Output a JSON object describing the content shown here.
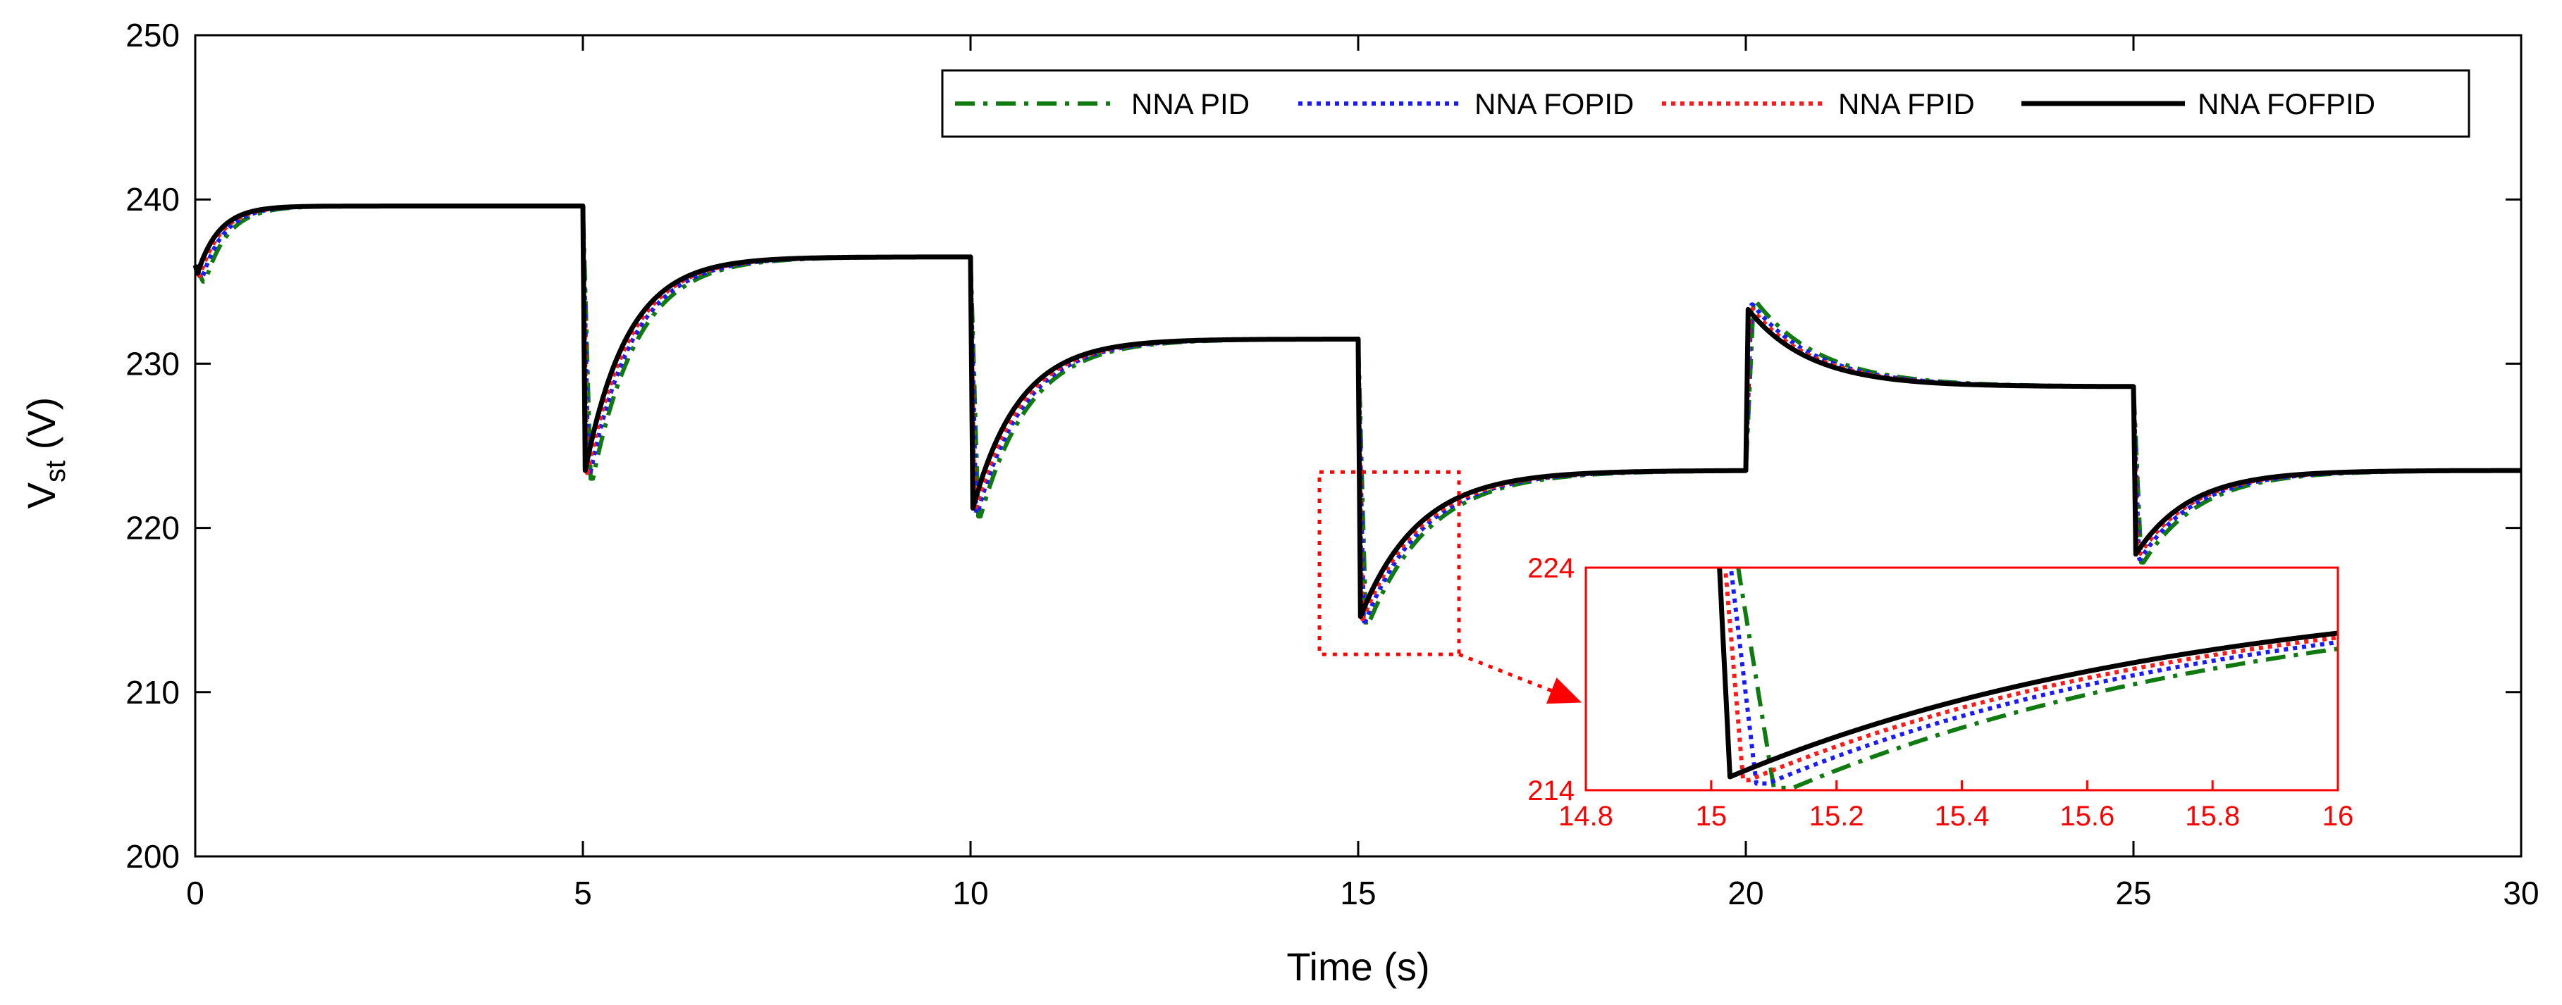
{
  "chart_data": {
    "type": "line",
    "title": "",
    "xlabel": "Time (s)",
    "ylabel_main": "V",
    "ylabel_sub": "st",
    "ylabel_unit": " (V)",
    "xlim": [
      0,
      30
    ],
    "ylim": [
      200,
      250
    ],
    "x_ticks": [
      "0",
      "5",
      "10",
      "15",
      "20",
      "25",
      "30"
    ],
    "x_tick_values": [
      0,
      5,
      10,
      15,
      20,
      25,
      30
    ],
    "y_ticks": [
      "200",
      "210",
      "220",
      "230",
      "240",
      "250"
    ],
    "y_tick_values": [
      200,
      210,
      220,
      230,
      240,
      250
    ],
    "grid": false,
    "legend_position": "top-right",
    "series": [
      {
        "name": "NNA PID",
        "color": "#0f7a0f",
        "dash": "dashdot",
        "dip_extra": 1.0
      },
      {
        "name": "NNA FOPID",
        "color": "#1a1aff",
        "dash": "dotted",
        "dip_extra": 0.6
      },
      {
        "name": "NNA FPID",
        "color": "#ff1a1a",
        "dash": "dotted",
        "dip_extra": 0.3
      },
      {
        "name": "NNA FOFPID",
        "color": "#000000",
        "dash": "solid",
        "dip_extra": 0.0
      }
    ],
    "segments": [
      {
        "t_start": 0,
        "t_end": 5,
        "start": 236.0,
        "peak": 235.5,
        "steady": 239.6
      },
      {
        "t_start": 5,
        "t_end": 10,
        "start": 239.6,
        "peak": 223.5,
        "steady": 236.5
      },
      {
        "t_start": 10,
        "t_end": 15,
        "start": 236.5,
        "peak": 221.2,
        "steady": 231.5
      },
      {
        "t_start": 15,
        "t_end": 20,
        "start": 231.5,
        "peak": 214.6,
        "steady": 223.5
      },
      {
        "t_start": 20,
        "t_end": 25,
        "start": 223.5,
        "peak": 233.3,
        "steady": 228.6
      },
      {
        "t_start": 25,
        "t_end": 30,
        "start": 228.6,
        "peak": 218.4,
        "steady": 223.5
      }
    ],
    "zoom_box": {
      "xlim": [
        14.5,
        16.3
      ],
      "ylim": [
        212.3,
        223.4
      ],
      "color": "#ff0000"
    },
    "inset": {
      "xlim": [
        14.8,
        16
      ],
      "ylim": [
        214,
        224
      ],
      "x_ticks": [
        "14.8",
        "15",
        "15.2",
        "15.4",
        "15.6",
        "15.8",
        "16"
      ],
      "x_tick_values": [
        14.8,
        15,
        15.2,
        15.4,
        15.6,
        15.8,
        16
      ],
      "y_ticks": [
        "214",
        "224"
      ],
      "y_tick_values": [
        214,
        224
      ],
      "color": "#ff0000"
    }
  }
}
